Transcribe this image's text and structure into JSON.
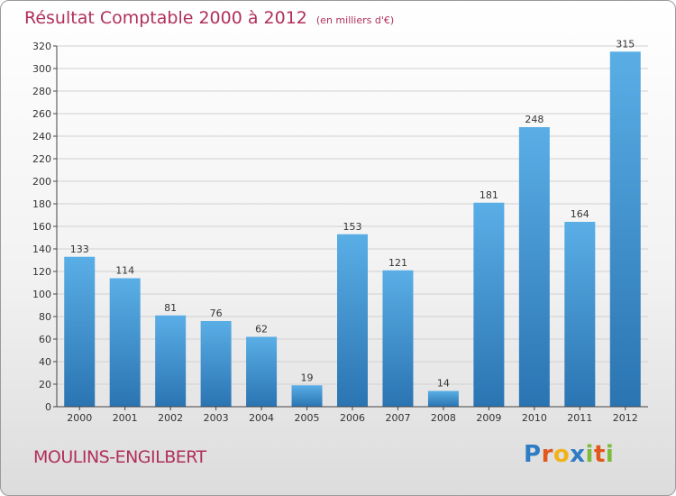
{
  "header": {
    "title": "Résultat Comptable 2000 à 2012",
    "subtitle": "(en milliers d'€)"
  },
  "footer": {
    "place": "MOULINS-ENGILBERT",
    "logo_letters": [
      "P",
      "r",
      "o",
      "x",
      "i",
      "t",
      "i"
    ]
  },
  "colors": {
    "title": "#b0305a",
    "bar_top": "#5aaee6",
    "bar_bottom": "#2a74b2",
    "grid": "#d0d0d0",
    "logo": [
      "#2e7cc4",
      "#e0581e",
      "#f1b21c",
      "#2e7cc4",
      "#7dbb3c",
      "#e0581e",
      "#7dbb3c"
    ]
  },
  "chart_data": {
    "type": "bar",
    "title": "Résultat Comptable 2000 à 2012",
    "subtitle": "(en milliers d'€)",
    "categories": [
      "2000",
      "2001",
      "2002",
      "2003",
      "2004",
      "2005",
      "2006",
      "2007",
      "2008",
      "2009",
      "2010",
      "2011",
      "2012"
    ],
    "values": [
      133,
      114,
      81,
      76,
      62,
      19,
      153,
      121,
      14,
      181,
      248,
      164,
      315
    ],
    "ylim": [
      0,
      320
    ],
    "yticks": [
      0,
      20,
      40,
      60,
      80,
      100,
      120,
      140,
      160,
      180,
      200,
      220,
      240,
      260,
      280,
      300,
      320
    ],
    "grid": true,
    "data_labels": true
  }
}
